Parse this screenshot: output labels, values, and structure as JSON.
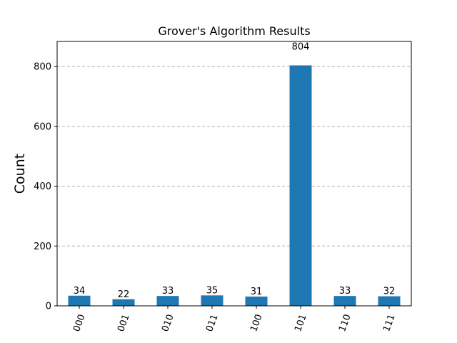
{
  "chart_data": {
    "type": "bar",
    "title": "Grover's Algorithm Results",
    "xlabel": "",
    "ylabel": "Count",
    "categories": [
      "000",
      "001",
      "010",
      "011",
      "100",
      "101",
      "110",
      "111"
    ],
    "values": [
      34,
      22,
      33,
      35,
      31,
      804,
      33,
      32
    ],
    "value_labels": [
      "34",
      "22",
      "33",
      "35",
      "31",
      "804",
      "33",
      "32"
    ],
    "yticks": [
      0,
      200,
      400,
      600,
      800
    ],
    "ytick_labels": [
      "0",
      "200",
      "400",
      "600",
      "800"
    ],
    "ylim": [
      0,
      884
    ],
    "grid": "y-dashed",
    "bar_color": "#1f77b4",
    "grid_color": "#b0b0b0"
  }
}
